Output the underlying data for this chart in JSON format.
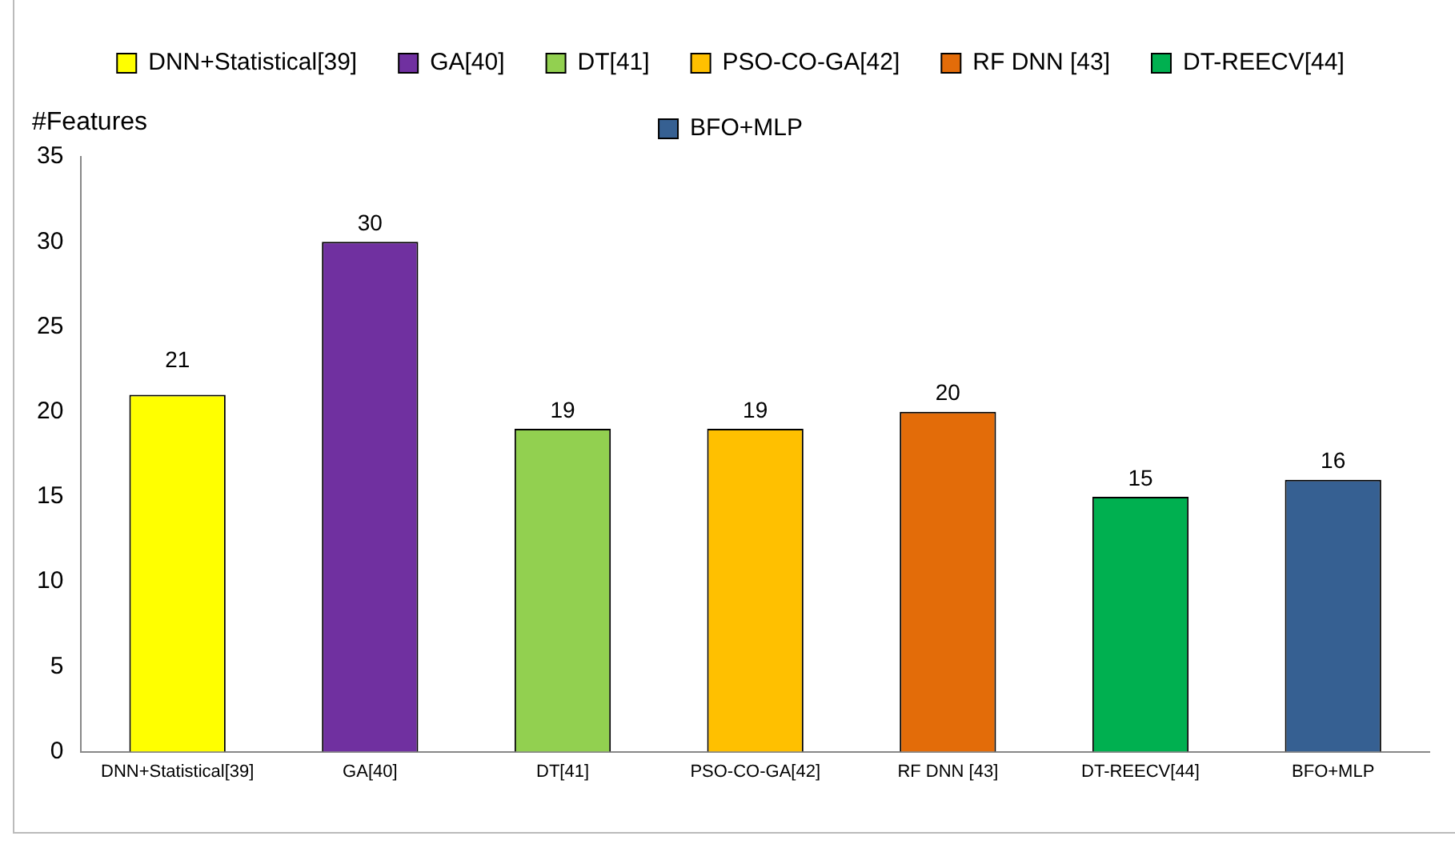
{
  "chart_data": {
    "type": "bar",
    "ylabel": "#Features",
    "stacked": true,
    "categories": [
      "DNN+Statistical[39]",
      "GA[40]",
      "DT[41]",
      "PSO-CO-GA[42]",
      "RF DNN [43]",
      "DT-REECV[44]",
      "BFO+MLP"
    ],
    "series": [
      {
        "name": "DNN+Statistical[39]",
        "color": "#ffff00",
        "values": [
          21,
          null,
          null,
          null,
          null,
          null,
          null
        ]
      },
      {
        "name": "GA[40]",
        "color": "#7030a0",
        "values": [
          null,
          30,
          null,
          null,
          null,
          null,
          null
        ]
      },
      {
        "name": "DT[41]",
        "color": "#92d050",
        "values": [
          null,
          null,
          19,
          null,
          null,
          null,
          null
        ]
      },
      {
        "name": "PSO-CO-GA[42]",
        "color": "#ffc000",
        "values": [
          null,
          null,
          null,
          19,
          null,
          null,
          null
        ]
      },
      {
        "name": "RF DNN [43]",
        "color": "#e36c09",
        "values": [
          null,
          null,
          null,
          null,
          20,
          null,
          null
        ]
      },
      {
        "name": "DT-REECV[44]",
        "color": "#00b050",
        "values": [
          null,
          null,
          null,
          null,
          null,
          15,
          null
        ]
      },
      {
        "name": "BFO+MLP",
        "color": "#366092",
        "values": [
          null,
          null,
          null,
          null,
          null,
          null,
          16
        ]
      }
    ],
    "ylim": [
      0,
      35
    ],
    "yticks": [
      0,
      5,
      10,
      15,
      20,
      25,
      30,
      35
    ],
    "data_labels": true,
    "legend": "top",
    "grid": false
  }
}
